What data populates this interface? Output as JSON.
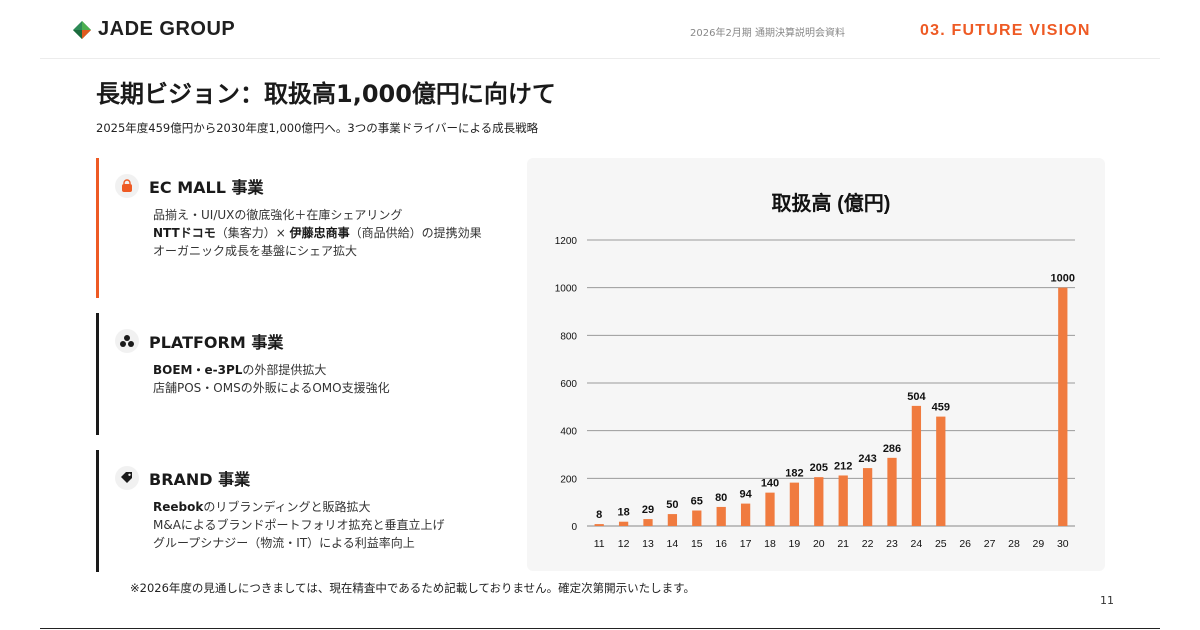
{
  "header": {
    "brand": "JADE GROUP",
    "doc_label": "2026年2月期 通期決算説明会資料",
    "section_label": "03. FUTURE VISION"
  },
  "title": "長期ビジョン：取扱高1,000億円に向けて",
  "subtitle": "2025年度459億円から2030年度1,000億円へ。3つの事業ドライバーによる成長戦略",
  "businesses": [
    {
      "icon": "shopping-bag-icon",
      "title": "EC MALL 事業",
      "lines": [
        {
          "text": "品揃え・UI/UXの徹底強化＋在庫シェアリング"
        },
        {
          "bold": "NTTドコモ",
          "text": "（集客力）×"
        },
        {
          "bold": "伊藤忠商事",
          "text": "（商品供給）の提携効果"
        },
        {
          "text": "オーガニック成長を基盤にシェア拡大"
        }
      ]
    },
    {
      "icon": "platform-cluster-icon",
      "title": "PLATFORM 事業",
      "lines": [
        {
          "bold": "BOEM・e-3PL",
          "text": "の外部提供拡大"
        },
        {
          "text": "店舗POS・OMSの外販によるOMO支援強化"
        }
      ]
    },
    {
      "icon": "tag-icon",
      "title": "BRAND 事業",
      "lines": [
        {
          "bold": "Reebok",
          "text": "のリブランディングと販路拡大"
        },
        {
          "text": "M&Aによるブランドポートフォリオ拡充と垂直立上げ"
        },
        {
          "text": "グループシナジー（物流・IT）による利益率向上"
        }
      ]
    }
  ],
  "chart_data": {
    "type": "bar",
    "title": "取扱高 (億円)",
    "categories": [
      "11",
      "12",
      "13",
      "14",
      "15",
      "16",
      "17",
      "18",
      "19",
      "20",
      "21",
      "22",
      "23",
      "24",
      "25",
      "26",
      "27",
      "28",
      "29",
      "30"
    ],
    "values": [
      8,
      18,
      29,
      50,
      65,
      80,
      94,
      140,
      182,
      205,
      212,
      243,
      286,
      504,
      459,
      null,
      null,
      null,
      null,
      1000
    ],
    "data_labels": [
      "8",
      "18",
      "29",
      "50",
      "65",
      "80",
      "94",
      "140",
      "182",
      "205",
      "212",
      "243",
      "286",
      "504",
      "459",
      "",
      "",
      "",
      "",
      "1000"
    ],
    "ylim": [
      0,
      1200
    ],
    "yticks": [
      0,
      200,
      400,
      600,
      800,
      1000,
      1200
    ],
    "grid": true,
    "bar_color": "#f07b3f",
    "xlabel": "",
    "ylabel": ""
  },
  "footnote": "※2026年度の見通しにつきましては、現在精査中であるため記載しておりません。確定次第開示いたします。",
  "page_number": "11",
  "colors": {
    "accent": "#ee5a24",
    "brand_green": "#2e8b57",
    "text_dark": "#1a1a1a"
  }
}
